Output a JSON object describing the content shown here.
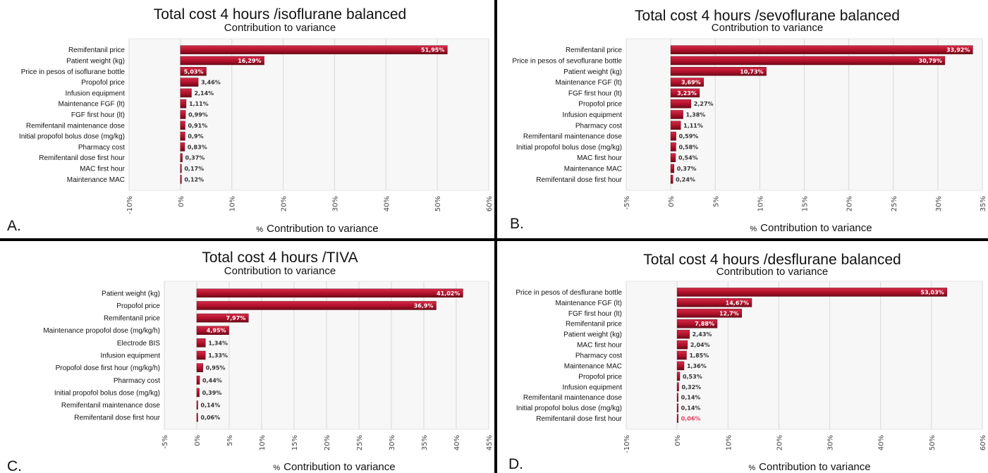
{
  "colors": {
    "bar_dark": "#6b0a18",
    "bar_mid": "#b0102a",
    "bar_light": "#d42a48",
    "grid": "#d9d9d9",
    "plot_bg": "#f7f7f7",
    "label_inside": "#ffffff",
    "label_outside": "#333333",
    "label_highlight": "#e23c5c",
    "divider": "#000000"
  },
  "chart_data": [
    {
      "type": "bar",
      "orientation": "horizontal",
      "panel_letter": "A.",
      "title": "Total cost 4 hours /isoflurane balanced",
      "subtitle": "Contribution to variance",
      "xlabel_prefix": "%",
      "xlabel": "Contribution to variance",
      "xlim": [
        -10,
        60
      ],
      "ticks": [
        -10,
        0,
        10,
        20,
        30,
        40,
        50,
        60
      ],
      "tick_labels": [
        "-10%",
        "0%",
        "10%",
        "20%",
        "30%",
        "40%",
        "50%",
        "60%"
      ],
      "categories": [
        "Remifentanil price",
        "Patient weight (kg)",
        "Price in pesos of isoflurane bottle",
        "Propofol price",
        "Infusion equipment",
        "Maintenance FGF (lt)",
        "FGF first hour (lt)",
        "Remifentanil maintenance dose",
        "Initial propofol bolus dose (mg/kg)",
        "Pharmacy cost",
        "Remifentanil dose first hour",
        "MAC first hour",
        "Maintenance MAC"
      ],
      "values": [
        51.95,
        16.29,
        5.03,
        3.46,
        2.14,
        1.11,
        0.99,
        0.91,
        0.9,
        0.83,
        0.37,
        0.17,
        0.12
      ],
      "value_labels": [
        "51,95%",
        "16,29%",
        "5,03%",
        "3,46%",
        "2,14%",
        "1,11%",
        "0,99%",
        "0,91%",
        "0,9%",
        "0,83%",
        "0,37%",
        "0,17%",
        "0,12%"
      ]
    },
    {
      "type": "bar",
      "orientation": "horizontal",
      "panel_letter": "B.",
      "title": "Total cost 4 hours /sevoflurane balanced",
      "subtitle": "Contribution to variance",
      "xlabel_prefix": "%",
      "xlabel": "Contribution to variance",
      "xlim": [
        -5,
        35
      ],
      "ticks": [
        -5,
        0,
        5,
        10,
        15,
        20,
        25,
        30,
        35
      ],
      "tick_labels": [
        "-5%",
        "0%",
        "5%",
        "10%",
        "15%",
        "20%",
        "25%",
        "30%",
        "35%"
      ],
      "categories": [
        "Remifentanil price",
        "Price in pesos of sevoflurane bottle",
        "Patient weight (kg)",
        "Maintenance FGF (lt)",
        "FGF first hour (lt)",
        "Propofol price",
        "Infusion equipment",
        "Pharmacy cost",
        "Remifentanil maintenance dose",
        "Initial propofol bolus dose (mg/kg)",
        "MAC first hour",
        "Maintenance MAC",
        "Remifentanil dose first hour"
      ],
      "values": [
        33.92,
        30.79,
        10.73,
        3.69,
        3.23,
        2.27,
        1.38,
        1.11,
        0.59,
        0.58,
        0.54,
        0.37,
        0.24
      ],
      "value_labels": [
        "33,92%",
        "30,79%",
        "10,73%",
        "3,69%",
        "3,23%",
        "2,27%",
        "1,38%",
        "1,11%",
        "0,59%",
        "0,58%",
        "0,54%",
        "0,37%",
        "0,24%"
      ]
    },
    {
      "type": "bar",
      "orientation": "horizontal",
      "panel_letter": "C.",
      "title": "Total cost 4 hours /TIVA",
      "subtitle": "Contribution to variance",
      "xlabel_prefix": "%",
      "xlabel": "Contribution to variance",
      "xlim": [
        -5,
        45
      ],
      "ticks": [
        -5,
        0,
        5,
        10,
        15,
        20,
        25,
        30,
        35,
        40,
        45
      ],
      "tick_labels": [
        "-5%",
        "0%",
        "5%",
        "10%",
        "15%",
        "20%",
        "25%",
        "30%",
        "35%",
        "40%",
        "45%"
      ],
      "categories": [
        "Patient weight (kg)",
        "Propofol price",
        "Remifentanil price",
        "Maintenance propofol dose (mg/kg/h)",
        "Electrode BIS",
        "Infusion equipment",
        "Propofol dose first hour (mg/kg/h)",
        "Pharmacy cost",
        "Initial propofol bolus dose (mg/kg)",
        "Remifentanil maintenance dose",
        "Remifentanil dose first hour"
      ],
      "values": [
        41.02,
        36.9,
        7.97,
        4.95,
        1.34,
        1.33,
        0.95,
        0.44,
        0.39,
        0.14,
        0.06
      ],
      "value_labels": [
        "41,02%",
        "36,9%",
        "7,97%",
        "4,95%",
        "1,34%",
        "1,33%",
        "0,95%",
        "0,44%",
        "0,39%",
        "0,14%",
        "0,06%"
      ]
    },
    {
      "type": "bar",
      "orientation": "horizontal",
      "panel_letter": "D.",
      "title": "Total cost 4 hours /desflurane balanced",
      "subtitle": "Contribution to variance",
      "xlabel_prefix": "%",
      "xlabel": "Contribution to variance",
      "xlim": [
        -10,
        60
      ],
      "ticks": [
        -10,
        0,
        10,
        20,
        30,
        40,
        50,
        60
      ],
      "tick_labels": [
        "-10%",
        "0%",
        "10%",
        "20%",
        "30%",
        "40%",
        "50%",
        "60%"
      ],
      "categories": [
        "Price in pesos of desflurane bottle",
        "Maintenance FGF (lt)",
        "FGF first hour (lt)",
        "Remifentanil price",
        "Patient weight (kg)",
        "MAC first hour",
        "Pharmacy cost",
        "Maintenance MAC",
        "Propofol price",
        "Infusion equipment",
        "Remifentanil maintenance dose",
        "Initial propofol bolus dose (mg/kg)",
        "Remifentanil dose first hour"
      ],
      "values": [
        53.03,
        14.67,
        12.7,
        7.88,
        2.43,
        2.04,
        1.85,
        1.36,
        0.53,
        0.32,
        0.14,
        0.14,
        0.06
      ],
      "value_labels": [
        "53,03%",
        "14,67%",
        "12,7%",
        "7,88%",
        "2,43%",
        "2,04%",
        "1,85%",
        "1,36%",
        "0,53%",
        "0,32%",
        "0,14%",
        "0,14%",
        "0,06%"
      ]
    }
  ]
}
